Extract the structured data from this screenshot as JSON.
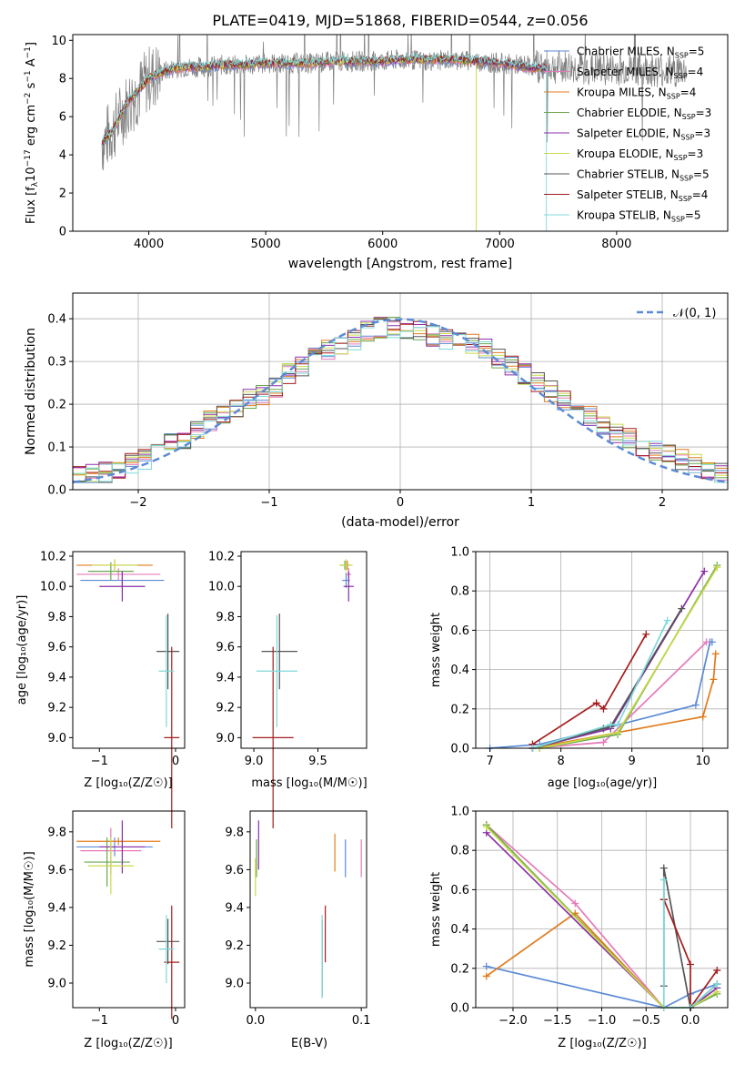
{
  "figure_title": "PLATE=0419, MJD=51868, FIBERID=0544, z=0.056",
  "models": [
    {
      "name": "Chabrier MILES",
      "nssp": "5",
      "color": "#5b8bd6"
    },
    {
      "name": "Salpeter MILES",
      "nssp": "4",
      "color": "#e57ab9"
    },
    {
      "name": "Kroupa MILES",
      "nssp": "4",
      "color": "#e07b1c"
    },
    {
      "name": "Chabrier ELODIE",
      "nssp": "3",
      "color": "#6aa84f"
    },
    {
      "name": "Salpeter ELODIE",
      "nssp": "3",
      "color": "#8b2fa8"
    },
    {
      "name": "Kroupa ELODIE",
      "nssp": "3",
      "color": "#c8d94a"
    },
    {
      "name": "Chabrier STELIB",
      "nssp": "5",
      "color": "#555555"
    },
    {
      "name": "Salpeter STELIB",
      "nssp": "4",
      "color": "#a51c1c"
    },
    {
      "name": "Kroupa STELIB",
      "nssp": "5",
      "color": "#7fd8d8"
    }
  ],
  "observed_color": "#808080",
  "panels": {
    "spectrum": {
      "xlabel": "wavelength [Angstrom, rest frame]",
      "ylabel_main": "Flux [f",
      "ylabel_sub": "λ",
      "ylabel_mid": "10",
      "ylabel_sup1": "−17",
      "ylabel_mid2": " erg cm",
      "ylabel_sup2": "−2",
      "ylabel_mid3": " s",
      "ylabel_sup3": "−1",
      "ylabel_mid4": " A",
      "ylabel_sup4": "−1",
      "ylabel_end": "]",
      "legend_sub": "SSP",
      "legend_prefix": "N",
      "xticks": [
        "4000",
        "5000",
        "6000",
        "7000",
        "8000"
      ],
      "yticks": [
        "0",
        "2",
        "4",
        "6",
        "8",
        "10"
      ]
    },
    "residuals": {
      "xlabel": "(data-model)/error",
      "ylabel": "Normed distribution",
      "legend": "𝒩(0, 1)",
      "xticks": [
        "−2",
        "−1",
        "0",
        "1",
        "2"
      ],
      "yticks": [
        "0.0",
        "0.1",
        "0.2",
        "0.3",
        "0.4"
      ]
    },
    "age_z": {
      "xlabel": "Z [log₁₀(Z/Z☉)]",
      "ylabel": "age  [log₁₀(age/yr)]",
      "xticks": [
        "−1",
        "0"
      ],
      "yticks": [
        "9.0",
        "9.2",
        "9.4",
        "9.6",
        "9.8",
        "10.0",
        "10.2"
      ]
    },
    "age_mass": {
      "xlabel": "mass [log₁₀(M/M☉)]",
      "xticks": [
        "9.0",
        "9.5"
      ],
      "yticks": [
        "9.0",
        "9.2",
        "9.4",
        "9.6",
        "9.8",
        "10.0",
        "10.2"
      ]
    },
    "mw_age": {
      "xlabel": "age  [log₁₀(age/yr)]",
      "ylabel": "mass weight",
      "xticks": [
        "7",
        "8",
        "9",
        "10"
      ],
      "yticks": [
        "0.0",
        "0.2",
        "0.4",
        "0.6",
        "0.8",
        "1.0"
      ]
    },
    "mass_z": {
      "xlabel": "Z [log₁₀(Z/Z☉)]",
      "ylabel": "mass [log₁₀(M/M☉)]",
      "xticks": [
        "−1",
        "0"
      ],
      "yticks": [
        "9.0",
        "9.2",
        "9.4",
        "9.6",
        "9.8"
      ]
    },
    "mass_ebv": {
      "xlabel": "E(B-V)",
      "xticks": [
        "0.0",
        "0.1"
      ],
      "yticks": [
        "9.0",
        "9.2",
        "9.4",
        "9.6",
        "9.8"
      ]
    },
    "mw_z": {
      "xlabel": "Z [log₁₀(Z/Z☉)]",
      "ylabel": "mass weight",
      "xticks": [
        "−2.0",
        "−1.5",
        "−1.0",
        "−0.5",
        "0.0"
      ],
      "yticks": [
        "0.0",
        "0.2",
        "0.4",
        "0.6",
        "0.8",
        "1.0"
      ]
    }
  },
  "chart_data": [
    {
      "id": "spectrum",
      "type": "line",
      "title": "PLATE=0419, MJD=51868, FIBERID=0544, z=0.056",
      "xlabel": "wavelength [Angstrom, rest frame]",
      "ylabel": "Flux [fλ10^-17 erg cm^-2 s^-1 A^-1]",
      "xlim": [
        3350,
        8950
      ],
      "ylim": [
        0,
        10.3
      ],
      "observed": {
        "x": [
          3600,
          3700,
          3800,
          3900,
          4000,
          4100,
          4200,
          4300,
          4400,
          4500,
          4600,
          4800,
          5000,
          5200,
          5400,
          5600,
          5800,
          6000,
          6200,
          6400,
          6600,
          6800,
          7000,
          7200,
          7400,
          7600,
          7800,
          8000,
          8200,
          8400,
          8600
        ],
        "y": [
          4.6,
          5.4,
          6.5,
          7.2,
          8.0,
          8.3,
          8.5,
          8.6,
          8.6,
          8.6,
          8.7,
          8.7,
          8.8,
          8.8,
          8.8,
          8.9,
          8.9,
          8.9,
          9.0,
          8.9,
          9.0,
          8.9,
          8.8,
          8.7,
          8.6,
          8.6,
          8.5,
          8.5,
          8.5,
          8.4,
          8.4
        ]
      },
      "model_x": [
        3600,
        3700,
        3800,
        3900,
        4000,
        4100,
        4200,
        4300,
        4400,
        4500,
        4600,
        4800,
        5000,
        5200,
        5400,
        5600,
        5800,
        6000,
        6200,
        6400,
        6600,
        6800,
        7000,
        7200,
        7400
      ],
      "model_y": [
        4.6,
        5.3,
        6.6,
        7.3,
        8.0,
        8.3,
        8.5,
        8.6,
        8.6,
        8.6,
        8.7,
        8.7,
        8.8,
        8.8,
        8.8,
        8.9,
        8.9,
        8.9,
        9.0,
        9.0,
        9.0,
        8.9,
        8.8,
        8.6,
        8.5
      ],
      "legend": "top-right",
      "grid": false
    },
    {
      "id": "residuals",
      "type": "line",
      "xlabel": "(data-model)/error",
      "ylabel": "Normed distribution",
      "xlim": [
        -2.5,
        2.5
      ],
      "ylim": [
        0,
        0.46
      ],
      "gaussian": {
        "name": "𝒩(0, 1)",
        "mean": 0,
        "sigma": 1
      },
      "histogram_bins": [
        -2.5,
        -2.4,
        -2.3,
        -2.2,
        -2.1,
        -2.0,
        -1.9,
        -1.8,
        -1.7,
        -1.6,
        -1.5,
        -1.4,
        -1.3,
        -1.2,
        -1.1,
        -1.0,
        -0.9,
        -0.8,
        -0.7,
        -0.6,
        -0.5,
        -0.4,
        -0.3,
        -0.2,
        -0.1,
        0.0,
        0.1,
        0.2,
        0.3,
        0.4,
        0.5,
        0.6,
        0.7,
        0.8,
        0.9,
        1.0,
        1.1,
        1.2,
        1.3,
        1.4,
        1.5,
        1.6,
        1.7,
        1.8,
        1.9,
        2.0,
        2.1,
        2.2,
        2.3,
        2.4,
        2.5
      ],
      "histogram_base": [
        0.03,
        0.035,
        0.04,
        0.05,
        0.06,
        0.07,
        0.09,
        0.11,
        0.12,
        0.14,
        0.16,
        0.18,
        0.19,
        0.21,
        0.22,
        0.24,
        0.27,
        0.29,
        0.31,
        0.33,
        0.34,
        0.35,
        0.37,
        0.38,
        0.38,
        0.37,
        0.37,
        0.36,
        0.35,
        0.35,
        0.34,
        0.33,
        0.31,
        0.29,
        0.27,
        0.25,
        0.23,
        0.21,
        0.19,
        0.17,
        0.15,
        0.13,
        0.12,
        0.1,
        0.09,
        0.08,
        0.07,
        0.06,
        0.05,
        0.04
      ],
      "legend": "top-right",
      "grid": true
    },
    {
      "id": "age_z",
      "type": "scatter",
      "xlabel": "Z [log10(Z/Z☉)]",
      "ylabel": "age [log10(age/yr)]",
      "xlim": [
        -1.35,
        0.12
      ],
      "ylim": [
        8.93,
        10.23
      ],
      "points": [
        {
          "model": 0,
          "x": -0.7,
          "xerr": 0.55,
          "y": 10.04,
          "yerr": 0.05
        },
        {
          "model": 1,
          "x": -0.75,
          "xerr": 0.55,
          "y": 10.08,
          "yerr": 0.04
        },
        {
          "model": 2,
          "x": -0.8,
          "xerr": 0.5,
          "y": 10.14,
          "yerr": 0.03
        },
        {
          "model": 3,
          "x": -0.85,
          "xerr": 0.3,
          "y": 10.1,
          "yerr": 0.06
        },
        {
          "model": 4,
          "x": -0.7,
          "xerr": 0.3,
          "y": 10.0,
          "yerr": 0.1
        },
        {
          "model": 5,
          "x": -0.8,
          "xerr": 0.3,
          "y": 10.14,
          "yerr": 0.04
        },
        {
          "model": 6,
          "x": -0.1,
          "xerr": 0.15,
          "y": 9.57,
          "yerr": 0.25
        },
        {
          "model": 7,
          "x": -0.05,
          "xerr": 0.1,
          "y": 9.0,
          "yerr": 0.6
        },
        {
          "model": 8,
          "x": -0.12,
          "xerr": 0.1,
          "y": 9.44,
          "yerr": 0.37
        }
      ],
      "grid": false
    },
    {
      "id": "age_mass",
      "type": "scatter",
      "xlabel": "mass [log10(M/M☉)]",
      "xlim": [
        8.9,
        9.88
      ],
      "ylim": [
        8.93,
        10.23
      ],
      "points": [
        {
          "model": 0,
          "x": 9.72,
          "xerr": 0.03,
          "y": 10.04,
          "yerr": 0.05
        },
        {
          "model": 1,
          "x": 9.74,
          "xerr": 0.02,
          "y": 10.08,
          "yerr": 0.04
        },
        {
          "model": 2,
          "x": 9.73,
          "xerr": 0.02,
          "y": 10.14,
          "yerr": 0.03
        },
        {
          "model": 3,
          "x": 9.71,
          "xerr": 0.04,
          "y": 10.14,
          "yerr": 0.03
        },
        {
          "model": 4,
          "x": 9.74,
          "xerr": 0.04,
          "y": 10.0,
          "yerr": 0.1
        },
        {
          "model": 5,
          "x": 9.72,
          "xerr": 0.05,
          "y": 10.14,
          "yerr": 0.04
        },
        {
          "model": 6,
          "x": 9.2,
          "xerr": 0.14,
          "y": 9.57,
          "yerr": 0.25
        },
        {
          "model": 7,
          "x": 9.15,
          "xerr": 0.16,
          "y": 9.0,
          "yerr": 0.6
        },
        {
          "model": 8,
          "x": 9.18,
          "xerr": 0.16,
          "y": 9.44,
          "yerr": 0.37
        }
      ],
      "grid": false
    },
    {
      "id": "mw_age",
      "type": "line",
      "xlabel": "age [log10(age/yr)]",
      "ylabel": "mass weight",
      "xlim": [
        6.8,
        10.35
      ],
      "ylim": [
        0,
        1
      ],
      "series": [
        {
          "model": 0,
          "x": [
            7.0,
            7.7,
            8.6,
            9.9,
            10.1,
            10.13
          ],
          "y": [
            0.0,
            0.02,
            0.1,
            0.22,
            0.54,
            0.54
          ]
        },
        {
          "model": 1,
          "x": [
            7.6,
            8.6,
            10.05
          ],
          "y": [
            0.0,
            0.03,
            0.54
          ]
        },
        {
          "model": 2,
          "x": [
            7.6,
            10.0,
            10.15,
            10.18
          ],
          "y": [
            0.0,
            0.16,
            0.35,
            0.48
          ]
        },
        {
          "model": 3,
          "x": [
            7.7,
            8.8,
            10.2
          ],
          "y": [
            0.0,
            0.07,
            0.93
          ]
        },
        {
          "model": 4,
          "x": [
            7.6,
            8.7,
            10.02
          ],
          "y": [
            0.0,
            0.1,
            0.9
          ]
        },
        {
          "model": 5,
          "x": [
            7.7,
            8.8,
            10.2
          ],
          "y": [
            0.0,
            0.08,
            0.92
          ]
        },
        {
          "model": 6,
          "x": [
            7.6,
            8.6,
            8.7,
            9.7
          ],
          "y": [
            0.0,
            0.1,
            0.11,
            0.71
          ]
        },
        {
          "model": 7,
          "x": [
            7.6,
            8.5,
            8.6,
            9.2
          ],
          "y": [
            0.02,
            0.23,
            0.2,
            0.58
          ]
        },
        {
          "model": 8,
          "x": [
            7.6,
            8.7,
            8.8,
            9.5
          ],
          "y": [
            0.0,
            0.12,
            0.12,
            0.65
          ]
        }
      ],
      "grid": true
    },
    {
      "id": "mass_z",
      "type": "scatter",
      "xlabel": "Z [log10(Z/Z☉)]",
      "ylabel": "mass [log10(M/M☉)]",
      "xlim": [
        -1.35,
        0.12
      ],
      "ylim": [
        8.87,
        9.91
      ],
      "points": [
        {
          "model": 0,
          "x": -0.8,
          "xerr": 0.5,
          "y": 9.72,
          "yerr": 0.05
        },
        {
          "model": 1,
          "x": -0.85,
          "xerr": 0.4,
          "y": 9.7,
          "yerr": 0.12
        },
        {
          "model": 2,
          "x": -0.75,
          "xerr": 0.55,
          "y": 9.75,
          "yerr": 0.02
        },
        {
          "model": 3,
          "x": -0.9,
          "xerr": 0.3,
          "y": 9.64,
          "yerr": 0.13
        },
        {
          "model": 4,
          "x": -0.7,
          "xerr": 0.3,
          "y": 9.72,
          "yerr": 0.14
        },
        {
          "model": 5,
          "x": -0.85,
          "xerr": 0.3,
          "y": 9.62,
          "yerr": 0.15
        },
        {
          "model": 6,
          "x": -0.1,
          "xerr": 0.15,
          "y": 9.22,
          "yerr": 0.12
        },
        {
          "model": 7,
          "x": -0.05,
          "xerr": 0.1,
          "y": 9.11,
          "yerr": 0.3
        },
        {
          "model": 8,
          "x": -0.12,
          "xerr": 0.1,
          "y": 9.18,
          "yerr": 0.18
        }
      ],
      "grid": false
    },
    {
      "id": "mass_ebv",
      "type": "scatter",
      "xlabel": "E(B-V)",
      "xlim": [
        -0.005,
        0.105
      ],
      "ylim": [
        8.87,
        9.91
      ],
      "points": [
        {
          "model": 0,
          "x": 0.085,
          "yerr": 0.1,
          "y": 9.66
        },
        {
          "model": 1,
          "x": 0.1,
          "yerr": 0.1,
          "y": 9.66
        },
        {
          "model": 2,
          "x": 0.075,
          "yerr": 0.1,
          "y": 9.69
        },
        {
          "model": 3,
          "x": 0.001,
          "yerr": 0.1,
          "y": 9.66
        },
        {
          "model": 4,
          "x": 0.003,
          "yerr": 0.13,
          "y": 9.73
        },
        {
          "model": 5,
          "x": 0.0,
          "yerr": 0.1,
          "y": 9.56
        },
        {
          "model": 6,
          "x": 0.063,
          "yerr": 0.2,
          "y": 9.13
        },
        {
          "model": 7,
          "x": 0.066,
          "yerr": 0.15,
          "y": 9.26
        },
        {
          "model": 8,
          "x": 0.063,
          "yerr": 0.22,
          "y": 9.14
        }
      ],
      "grid": false
    },
    {
      "id": "mw_z",
      "type": "line",
      "xlabel": "Z [log10(Z/Z☉)]",
      "ylabel": "mass weight",
      "xlim": [
        -2.42,
        0.42
      ],
      "ylim": [
        0,
        1
      ],
      "series": [
        {
          "model": 0,
          "x": [
            -2.3,
            -0.3,
            0.0,
            0.3
          ],
          "y": [
            0.21,
            0.0,
            0.07,
            0.12
          ]
        },
        {
          "model": 1,
          "x": [
            -2.3,
            -1.3,
            -0.3,
            0.0
          ],
          "y": [
            0.93,
            0.53,
            0.0,
            0.0
          ]
        },
        {
          "model": 2,
          "x": [
            -2.3,
            -1.3,
            -0.3,
            0.0
          ],
          "y": [
            0.16,
            0.48,
            0.0,
            0.0
          ]
        },
        {
          "model": 3,
          "x": [
            -2.3,
            -0.3,
            0.0,
            0.3
          ],
          "y": [
            0.93,
            0.0,
            0.0,
            0.07
          ]
        },
        {
          "model": 4,
          "x": [
            -2.3,
            -0.3,
            0.0,
            0.3
          ],
          "y": [
            0.89,
            0.0,
            0.0,
            0.1
          ]
        },
        {
          "model": 5,
          "x": [
            -2.3,
            -0.3,
            0.0,
            0.3
          ],
          "y": [
            0.92,
            0.0,
            0.0,
            0.08
          ]
        },
        {
          "model": 6,
          "x": [
            -0.3,
            -0.3,
            0.0,
            0.3
          ],
          "y": [
            0.11,
            0.71,
            0.0,
            0.12
          ]
        },
        {
          "model": 7,
          "x": [
            -0.3,
            -0.3,
            0.0,
            0.0,
            0.3
          ],
          "y": [
            0.55,
            0.55,
            0.22,
            0.0,
            0.19
          ]
        },
        {
          "model": 8,
          "x": [
            -0.3,
            -0.3,
            0.0,
            0.3
          ],
          "y": [
            0.65,
            0.0,
            0.0,
            0.12
          ]
        }
      ],
      "grid": true
    }
  ]
}
